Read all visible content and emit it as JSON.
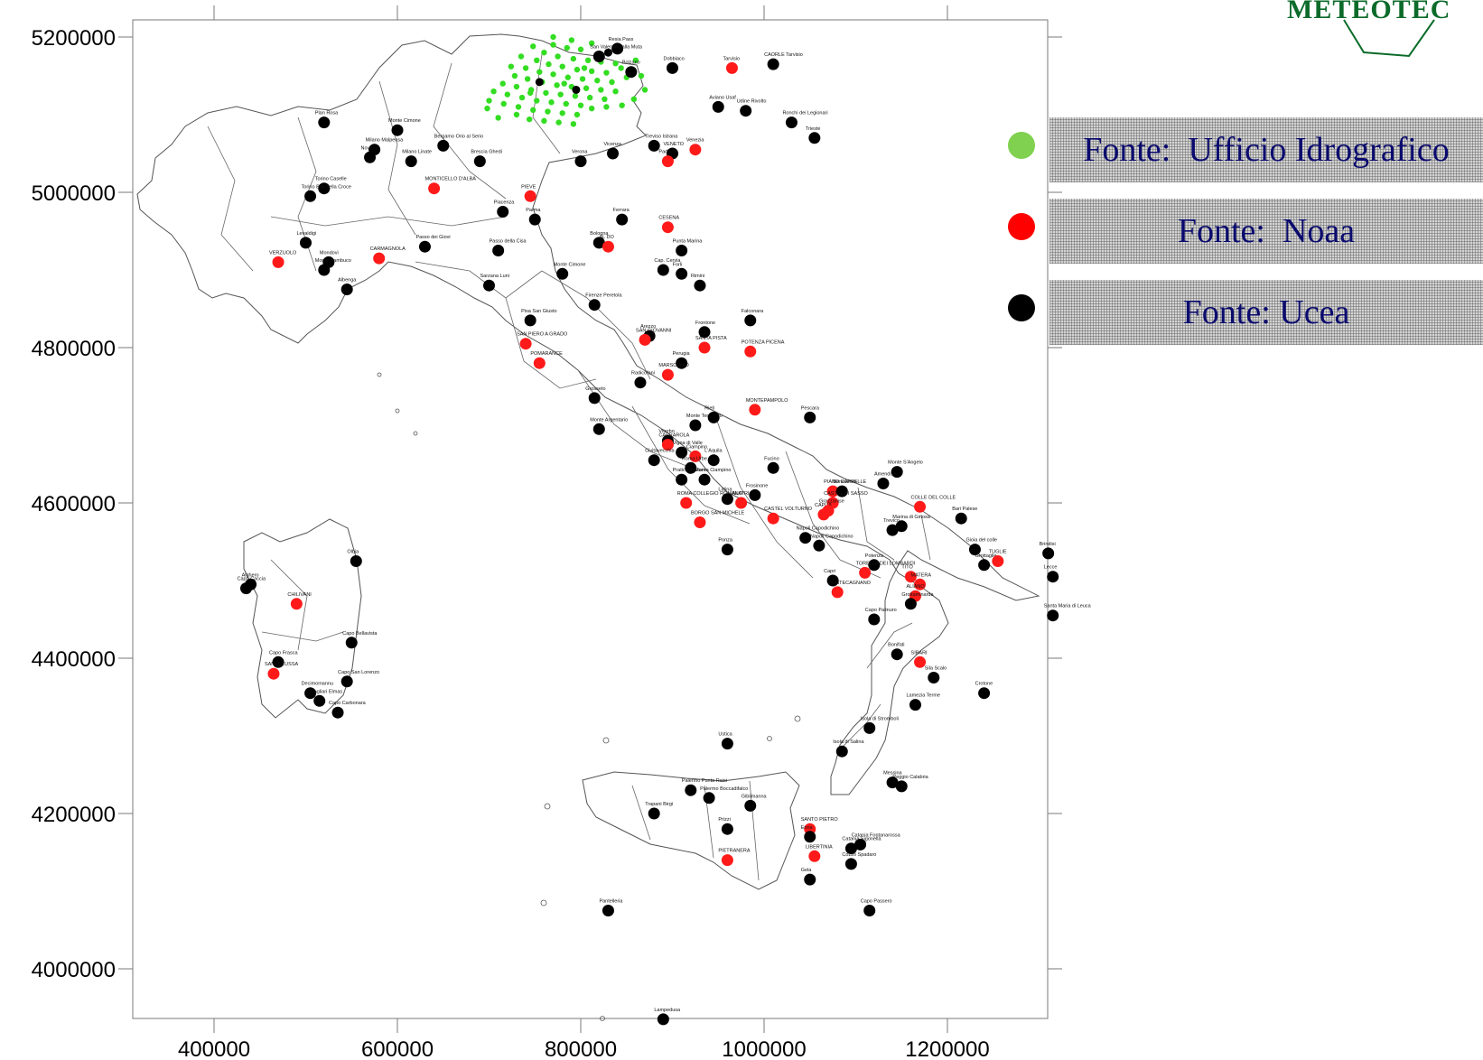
{
  "axes": {
    "x_ticks": [
      "400000",
      "600000",
      "800000",
      "1000000",
      "1200000"
    ],
    "y_ticks": [
      "5200000",
      "5000000",
      "4800000",
      "4600000",
      "4400000",
      "4200000",
      "4000000"
    ]
  },
  "logo": {
    "text": "METEOTEC",
    "color": "#0c6b2a"
  },
  "legend": [
    {
      "label": "Fonte:  Ufficio Idrografico",
      "color": "#7fd14f"
    },
    {
      "label": "Fonte:  Noaa",
      "color": "#ff0000"
    },
    {
      "label": "Fonte: Ucea",
      "color": "#000000"
    }
  ],
  "colors": {
    "ufficio": "#33dd22",
    "noaa": "#ff1a1a",
    "ucea": "#000000",
    "legend_text": "#0a0a6e"
  },
  "stations": [
    {
      "x": 840000,
      "y": 5185000,
      "t": "Resia Pass"
    },
    {
      "x": 820000,
      "y": 5175000,
      "t": "San Valentino alla Muta"
    },
    {
      "x": 855000,
      "y": 5155000,
      "t": "Bolzano"
    },
    {
      "x": 900000,
      "y": 5160000,
      "t": "Dobbiaco"
    },
    {
      "x": 1010000,
      "y": 5165000,
      "t": "CAORLE Tarvisio",
      "s": "ucea"
    },
    {
      "x": 965000,
      "y": 5160000,
      "t": "Tarvisio",
      "s": "noaa"
    },
    {
      "x": 520000,
      "y": 5090000,
      "t": "Plan Rosa"
    },
    {
      "x": 950000,
      "y": 5110000,
      "t": "Aviano Usaf"
    },
    {
      "x": 980000,
      "y": 5105000,
      "t": "Udine Rivolto"
    },
    {
      "x": 1030000,
      "y": 5090000,
      "t": "Ronchi dei Legionari"
    },
    {
      "x": 1055000,
      "y": 5070000,
      "t": "Trieste"
    },
    {
      "x": 600000,
      "y": 5080000,
      "t": "Monte Cimone"
    },
    {
      "x": 650000,
      "y": 5060000,
      "t": "Bergamo Orio al Serio"
    },
    {
      "x": 575000,
      "y": 5055000,
      "t": "Milano Malpensa"
    },
    {
      "x": 570000,
      "y": 5045000,
      "t": "Novara"
    },
    {
      "x": 615000,
      "y": 5040000,
      "t": "Milano Linate"
    },
    {
      "x": 690000,
      "y": 5040000,
      "t": "Brescia Ghedi"
    },
    {
      "x": 800000,
      "y": 5040000,
      "t": "Verona"
    },
    {
      "x": 835000,
      "y": 5050000,
      "t": "Vicenza"
    },
    {
      "x": 880000,
      "y": 5060000,
      "t": "Treviso Istrana"
    },
    {
      "x": 900000,
      "y": 5050000,
      "t": "VENETO"
    },
    {
      "x": 925000,
      "y": 5055000,
      "t": "Venezia",
      "s": "noaa"
    },
    {
      "x": 895000,
      "y": 5040000,
      "t": "Padova",
      "s": "noaa"
    },
    {
      "x": 520000,
      "y": 5005000,
      "t": "Torino Caselle"
    },
    {
      "x": 505000,
      "y": 4995000,
      "t": "Torino Bric della Croce"
    },
    {
      "x": 640000,
      "y": 5005000,
      "t": "MONTICELLO D'ALBA",
      "s": "noaa"
    },
    {
      "x": 715000,
      "y": 4975000,
      "t": "Piacenza"
    },
    {
      "x": 745000,
      "y": 4995000,
      "t": "PIEVE",
      "s": "noaa"
    },
    {
      "x": 750000,
      "y": 4965000,
      "t": "Parma"
    },
    {
      "x": 845000,
      "y": 4965000,
      "t": "Ferrara"
    },
    {
      "x": 895000,
      "y": 4955000,
      "t": "CESENA",
      "s": "noaa"
    },
    {
      "x": 500000,
      "y": 4935000,
      "t": "Levaldigi"
    },
    {
      "x": 470000,
      "y": 4910000,
      "t": "VERZUOLO",
      "s": "noaa"
    },
    {
      "x": 525000,
      "y": 4910000,
      "t": "Mondovi"
    },
    {
      "x": 580000,
      "y": 4915000,
      "t": "CARMAGNOLA",
      "s": "noaa"
    },
    {
      "x": 630000,
      "y": 4930000,
      "t": "Passo dei Giovi"
    },
    {
      "x": 710000,
      "y": 4925000,
      "t": "Passo della Cisa"
    },
    {
      "x": 820000,
      "y": 4935000,
      "t": "Bologna"
    },
    {
      "x": 830000,
      "y": 4930000,
      "t": "AL DO",
      "s": "noaa"
    },
    {
      "x": 910000,
      "y": 4925000,
      "t": "Punta Marina"
    },
    {
      "x": 890000,
      "y": 4900000,
      "t": "Cap. Cervia"
    },
    {
      "x": 910000,
      "y": 4895000,
      "t": "Forli"
    },
    {
      "x": 930000,
      "y": 4880000,
      "t": "Rimini"
    },
    {
      "x": 520000,
      "y": 4900000,
      "t": "Monte Sambuco"
    },
    {
      "x": 545000,
      "y": 4875000,
      "t": "Albenga"
    },
    {
      "x": 700000,
      "y": 4880000,
      "t": "Sarzana Luni"
    },
    {
      "x": 780000,
      "y": 4895000,
      "t": "Monte Cimone"
    },
    {
      "x": 815000,
      "y": 4855000,
      "t": "Firenze Peretola"
    },
    {
      "x": 745000,
      "y": 4835000,
      "t": "Pisa San Giusto"
    },
    {
      "x": 740000,
      "y": 4805000,
      "t": "SAN PIERO A GRADO",
      "s": "noaa"
    },
    {
      "x": 755000,
      "y": 4780000,
      "t": "POMARANCE",
      "s": "noaa"
    },
    {
      "x": 875000,
      "y": 4815000,
      "t": "Arezzo"
    },
    {
      "x": 870000,
      "y": 4810000,
      "t": "SAN GIOVANNI",
      "s": "noaa"
    },
    {
      "x": 935000,
      "y": 4820000,
      "t": "Frontone"
    },
    {
      "x": 935000,
      "y": 4800000,
      "t": "SANTA PISTA",
      "s": "noaa"
    },
    {
      "x": 985000,
      "y": 4835000,
      "t": "Falconara"
    },
    {
      "x": 985000,
      "y": 4795000,
      "t": "POTENZA PICENA",
      "s": "noaa"
    },
    {
      "x": 910000,
      "y": 4780000,
      "t": "Perugia"
    },
    {
      "x": 895000,
      "y": 4765000,
      "t": "MARSCIANO",
      "s": "noaa"
    },
    {
      "x": 865000,
      "y": 4755000,
      "t": "Radicofani"
    },
    {
      "x": 815000,
      "y": 4735000,
      "t": "Grosseto"
    },
    {
      "x": 990000,
      "y": 4720000,
      "t": "MONTEPAMPOLO",
      "s": "noaa"
    },
    {
      "x": 1050000,
      "y": 4710000,
      "t": "Pescara"
    },
    {
      "x": 925000,
      "y": 4700000,
      "t": "Monte Terminillo"
    },
    {
      "x": 945000,
      "y": 4710000,
      "t": "Rieti"
    },
    {
      "x": 820000,
      "y": 4695000,
      "t": "Monte Argentario"
    },
    {
      "x": 895000,
      "y": 4680000,
      "t": "Viterbo"
    },
    {
      "x": 895000,
      "y": 4675000,
      "t": "CAPRAROLA",
      "s": "noaa"
    },
    {
      "x": 910000,
      "y": 4665000,
      "t": "Vigna di Valle"
    },
    {
      "x": 925000,
      "y": 4660000,
      "t": "Ciampino",
      "s": "noaa"
    },
    {
      "x": 945000,
      "y": 4655000,
      "t": "L'Aquila"
    },
    {
      "x": 880000,
      "y": 4655000,
      "t": "Civitavecchia"
    },
    {
      "x": 920000,
      "y": 4645000,
      "t": "Roma Urbe"
    },
    {
      "x": 935000,
      "y": 4630000,
      "t": "Roma Ciampino"
    },
    {
      "x": 910000,
      "y": 4630000,
      "t": "Pratica di Mare"
    },
    {
      "x": 1010000,
      "y": 4645000,
      "t": "Fucino"
    },
    {
      "x": 1145000,
      "y": 4640000,
      "t": "Monte S'Angelo"
    },
    {
      "x": 1130000,
      "y": 4625000,
      "t": "Amendola"
    },
    {
      "x": 1075000,
      "y": 4615000,
      "t": "PIANO CAPPELLE",
      "s": "noaa"
    },
    {
      "x": 1085000,
      "y": 4615000,
      "t": "Benevento"
    },
    {
      "x": 1075000,
      "y": 4600000,
      "t": "CASTEL DI SASSO",
      "s": "noaa"
    },
    {
      "x": 915000,
      "y": 4600000,
      "t": "ROMA COLLEGIO ROMANO",
      "s": "noaa"
    },
    {
      "x": 960000,
      "y": 4605000,
      "t": "Latina"
    },
    {
      "x": 975000,
      "y": 4600000,
      "t": "ALATRI",
      "s": "noaa"
    },
    {
      "x": 990000,
      "y": 4610000,
      "t": "Frosinone"
    },
    {
      "x": 1010000,
      "y": 4580000,
      "t": "CASTEL VOLTURNO",
      "s": "noaa"
    },
    {
      "x": 1065000,
      "y": 4585000,
      "t": "CAPUA",
      "s": "noaa"
    },
    {
      "x": 1070000,
      "y": 4590000,
      "t": "Grazzanise",
      "s": "noaa"
    },
    {
      "x": 930000,
      "y": 4575000,
      "t": "BORGO SAN MICHELE",
      "s": "noaa"
    },
    {
      "x": 1045000,
      "y": 4555000,
      "t": "Napoli Capodichino"
    },
    {
      "x": 1170000,
      "y": 4595000,
      "t": "COLLE DEL COLLE",
      "s": "noaa"
    },
    {
      "x": 1215000,
      "y": 4580000,
      "t": "Bari Palese"
    },
    {
      "x": 1150000,
      "y": 4570000,
      "t": "Marina di Ginosa"
    },
    {
      "x": 1140000,
      "y": 4565000,
      "t": "Trevico"
    },
    {
      "x": 960000,
      "y": 4540000,
      "t": "Ponza"
    },
    {
      "x": 1060000,
      "y": 4545000,
      "t": "Napoli Capodichino"
    },
    {
      "x": 1230000,
      "y": 4540000,
      "t": "Gioia del colle"
    },
    {
      "x": 1240000,
      "y": 4520000,
      "t": "Grottaglie"
    },
    {
      "x": 1255000,
      "y": 4525000,
      "t": "TUGLIE",
      "s": "noaa"
    },
    {
      "x": 1310000,
      "y": 4535000,
      "t": "Brindisi"
    },
    {
      "x": 1315000,
      "y": 4505000,
      "t": "Lecce"
    },
    {
      "x": 1315000,
      "y": 4455000,
      "t": "Santa Maria di Leuca"
    },
    {
      "x": 1120000,
      "y": 4520000,
      "t": "Potenza"
    },
    {
      "x": 1110000,
      "y": 4510000,
      "t": "TORELLA DEI LOMBARDI",
      "s": "noaa"
    },
    {
      "x": 1160000,
      "y": 4505000,
      "t": "TITO",
      "s": "noaa"
    },
    {
      "x": 1170000,
      "y": 4495000,
      "t": "MATERA",
      "s": "noaa"
    },
    {
      "x": 1165000,
      "y": 4480000,
      "t": "ALIANO",
      "s": "noaa"
    },
    {
      "x": 1160000,
      "y": 4470000,
      "t": "Grottaminarda"
    },
    {
      "x": 1075000,
      "y": 4500000,
      "t": "Capri"
    },
    {
      "x": 1080000,
      "y": 4485000,
      "t": "PONTECAGNANO",
      "s": "noaa"
    },
    {
      "x": 1120000,
      "y": 4450000,
      "t": "Capo Palinuro"
    },
    {
      "x": 1145000,
      "y": 4405000,
      "t": "Bonifati"
    },
    {
      "x": 1170000,
      "y": 4395000,
      "t": "SIBARI",
      "s": "noaa"
    },
    {
      "x": 1185000,
      "y": 4375000,
      "t": "Sila Scalo"
    },
    {
      "x": 1165000,
      "y": 4340000,
      "t": "Lamezia Terme"
    },
    {
      "x": 1240000,
      "y": 4355000,
      "t": "Crotone"
    },
    {
      "x": 1115000,
      "y": 4310000,
      "t": "Isola di Stromboli"
    },
    {
      "x": 1085000,
      "y": 4280000,
      "t": "Isola di Salina"
    },
    {
      "x": 1140000,
      "y": 4240000,
      "t": "Messina"
    },
    {
      "x": 1150000,
      "y": 4235000,
      "t": "Reggio Calabria"
    },
    {
      "x": 960000,
      "y": 4290000,
      "t": "Ustica"
    },
    {
      "x": 920000,
      "y": 4230000,
      "t": "Palermo Punta Raisi"
    },
    {
      "x": 940000,
      "y": 4220000,
      "t": "Palermo Boccadifalco"
    },
    {
      "x": 985000,
      "y": 4210000,
      "t": "Gibilmanna"
    },
    {
      "x": 880000,
      "y": 4200000,
      "t": "Trapani Birgi"
    },
    {
      "x": 1050000,
      "y": 4180000,
      "t": "SANTO PIETRO",
      "s": "noaa"
    },
    {
      "x": 1050000,
      "y": 4170000,
      "t": "Enna"
    },
    {
      "x": 960000,
      "y": 4180000,
      "t": "Prizzi"
    },
    {
      "x": 1105000,
      "y": 4160000,
      "t": "Catania Fontanarossa"
    },
    {
      "x": 1095000,
      "y": 4155000,
      "t": "Catania Sigonella"
    },
    {
      "x": 960000,
      "y": 4140000,
      "t": "PIETRANERA",
      "s": "noaa"
    },
    {
      "x": 1055000,
      "y": 4145000,
      "t": "LIBERTINIA",
      "s": "noaa"
    },
    {
      "x": 1050000,
      "y": 4115000,
      "t": "Gela"
    },
    {
      "x": 1115000,
      "y": 4075000,
      "t": "Capo Passero"
    },
    {
      "x": 830000,
      "y": 4075000,
      "t": "Pantelleria"
    },
    {
      "x": 890000,
      "y": 3935000,
      "t": "Lampedusa"
    },
    {
      "x": 1095000,
      "y": 4135000,
      "t": "Cozzo Spadaro"
    },
    {
      "x": 435000,
      "y": 4490000,
      "t": "Capo Caccia"
    },
    {
      "x": 440000,
      "y": 4495000,
      "t": "Alghero"
    },
    {
      "x": 490000,
      "y": 4470000,
      "t": "CHILIVANI",
      "s": "noaa"
    },
    {
      "x": 555000,
      "y": 4525000,
      "t": "Olbia"
    },
    {
      "x": 550000,
      "y": 4420000,
      "t": "Capo Bellavista"
    },
    {
      "x": 470000,
      "y": 4395000,
      "t": "Capo Frasca"
    },
    {
      "x": 465000,
      "y": 4380000,
      "t": "SANTA LUSSA",
      "s": "noaa"
    },
    {
      "x": 505000,
      "y": 4355000,
      "t": "Decimomannu"
    },
    {
      "x": 515000,
      "y": 4345000,
      "t": "Cagliari Elmas"
    },
    {
      "x": 545000,
      "y": 4370000,
      "t": "Capo San Lorenzo"
    },
    {
      "x": 535000,
      "y": 4330000,
      "t": "Capo Carbonara"
    }
  ],
  "ufficio_points": [
    [
      770000,
      5190000
    ],
    [
      785000,
      5186000
    ],
    [
      800000,
      5184000
    ],
    [
      760000,
      5180000
    ],
    [
      775000,
      5175000
    ],
    [
      792000,
      5172000
    ],
    [
      808000,
      5170000
    ],
    [
      822000,
      5168000
    ],
    [
      838000,
      5166000
    ],
    [
      752000,
      5170000
    ],
    [
      765000,
      5165000
    ],
    [
      780000,
      5162000
    ],
    [
      796000,
      5158000
    ],
    [
      812000,
      5156000
    ],
    [
      828000,
      5154000
    ],
    [
      844000,
      5160000
    ],
    [
      740000,
      5160000
    ],
    [
      755000,
      5155000
    ],
    [
      770000,
      5152000
    ],
    [
      786000,
      5148000
    ],
    [
      802000,
      5146000
    ],
    [
      818000,
      5144000
    ],
    [
      834000,
      5142000
    ],
    [
      850000,
      5148000
    ],
    [
      728000,
      5150000
    ],
    [
      742000,
      5146000
    ],
    [
      758000,
      5142000
    ],
    [
      774000,
      5138000
    ],
    [
      790000,
      5136000
    ],
    [
      806000,
      5134000
    ],
    [
      822000,
      5132000
    ],
    [
      838000,
      5130000
    ],
    [
      715000,
      5140000
    ],
    [
      730000,
      5136000
    ],
    [
      746000,
      5132000
    ],
    [
      762000,
      5128000
    ],
    [
      778000,
      5126000
    ],
    [
      794000,
      5124000
    ],
    [
      810000,
      5122000
    ],
    [
      826000,
      5120000
    ],
    [
      705000,
      5130000
    ],
    [
      720000,
      5126000
    ],
    [
      736000,
      5122000
    ],
    [
      752000,
      5118000
    ],
    [
      768000,
      5116000
    ],
    [
      784000,
      5114000
    ],
    [
      800000,
      5112000
    ],
    [
      700000,
      5118000
    ],
    [
      716000,
      5114000
    ],
    [
      732000,
      5110000
    ],
    [
      748000,
      5106000
    ],
    [
      764000,
      5104000
    ],
    [
      780000,
      5102000
    ],
    [
      796000,
      5100000
    ],
    [
      812000,
      5108000
    ],
    [
      828000,
      5110000
    ],
    [
      744000,
      5094000
    ],
    [
      760000,
      5092000
    ],
    [
      776000,
      5090000
    ],
    [
      792000,
      5088000
    ],
    [
      730000,
      5100000
    ],
    [
      698000,
      5108000
    ],
    [
      710000,
      5096000
    ],
    [
      860000,
      5170000
    ],
    [
      866000,
      5150000
    ],
    [
      870000,
      5132000
    ],
    [
      858000,
      5120000
    ],
    [
      845000,
      5112000
    ],
    [
      735000,
      5175000
    ],
    [
      748000,
      5188000
    ],
    [
      812000,
      5192000
    ],
    [
      790000,
      5196000
    ],
    [
      770000,
      5200000
    ],
    [
      830000,
      5180000
    ],
    [
      745000,
      5128000
    ],
    [
      782000,
      5140000
    ],
    [
      804000,
      5160000
    ],
    [
      724000,
      5162000
    ]
  ],
  "ufficio_black": [
    [
      795000,
      5132000
    ],
    [
      755000,
      5142000
    ],
    [
      830000,
      5180000
    ]
  ]
}
